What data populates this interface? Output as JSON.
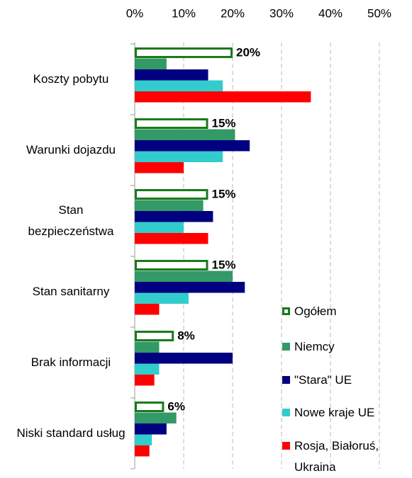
{
  "chart_data": {
    "type": "hbar",
    "categories": [
      "Koszty pobytu",
      "Warunki dojazdu",
      "Stan bezpieczeństwa",
      "Stan sanitarny",
      "Brak informacji",
      "Niski standard usług"
    ],
    "series": [
      {
        "name": "Ogółem",
        "color": "#1a7a1a",
        "values": [
          20,
          15,
          15,
          15,
          8,
          6
        ],
        "value_labels": [
          "20%",
          "15%",
          "15%",
          "15%",
          "8%",
          "6%"
        ],
        "outline": true
      },
      {
        "name": "Niemcy",
        "color": "#339966",
        "values": [
          6.5,
          20.5,
          14,
          20,
          5,
          8.5
        ]
      },
      {
        "name": "\"Stara\" UE",
        "color": "#000080",
        "values": [
          15,
          23.5,
          16,
          22.5,
          20,
          6.5
        ]
      },
      {
        "name": "Nowe kraje UE",
        "color": "#33cccc",
        "values": [
          18,
          18,
          10,
          11,
          5,
          3.5
        ]
      },
      {
        "name": "Rosja, Białoruś, Ukraina",
        "color": "#ff0000",
        "values": [
          36,
          10,
          15,
          5,
          4,
          3
        ]
      }
    ],
    "xlim": [
      0,
      50
    ],
    "xticks": [
      {
        "value": 0,
        "label": "0%"
      },
      {
        "value": 10,
        "label": "10%"
      },
      {
        "value": 20,
        "label": "20%"
      },
      {
        "value": 30,
        "label": "30%"
      },
      {
        "value": 40,
        "label": "40%"
      },
      {
        "value": 50,
        "label": "50%"
      }
    ],
    "grid": true
  }
}
